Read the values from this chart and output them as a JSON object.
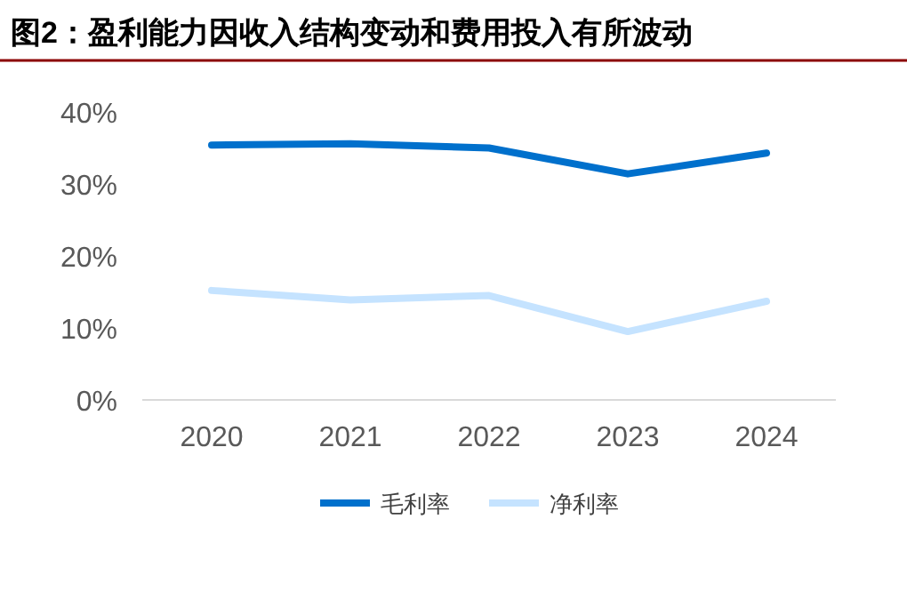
{
  "chart_data": {
    "type": "line",
    "title": "图2：盈利能力因收入结构变动和费用投入有所波动",
    "categories": [
      "2020",
      "2021",
      "2022",
      "2023",
      "2024"
    ],
    "series": [
      {
        "name": "毛利率",
        "color": "#0070cc",
        "values": [
          35.4,
          35.6,
          35.0,
          31.4,
          34.3
        ]
      },
      {
        "name": "净利率",
        "color": "#c5e3ff",
        "values": [
          15.2,
          13.9,
          14.5,
          9.5,
          13.7
        ]
      }
    ],
    "ylim": [
      0,
      40
    ],
    "yticks": [
      {
        "value": 0,
        "label": "0%"
      },
      {
        "value": 10,
        "label": "10%"
      },
      {
        "value": 20,
        "label": "20%"
      },
      {
        "value": 30,
        "label": "30%"
      },
      {
        "value": 40,
        "label": "40%"
      }
    ],
    "grid": false,
    "legend": "bottom",
    "marker": "none",
    "line_style": "solid"
  }
}
